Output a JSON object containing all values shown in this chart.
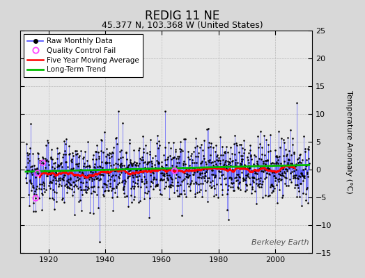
{
  "title": "REDIG 11 NE",
  "subtitle": "45.377 N, 103.368 W (United States)",
  "ylabel": "Temperature Anomaly (°C)",
  "watermark": "Berkeley Earth",
  "year_start": 1912,
  "year_end": 2011,
  "ylim": [
    -15,
    25
  ],
  "yticks": [
    -15,
    -10,
    -5,
    0,
    5,
    10,
    15,
    20,
    25
  ],
  "xticks": [
    1920,
    1940,
    1960,
    1980,
    2000
  ],
  "xlim_left": 1910,
  "xlim_right": 2013,
  "fig_bg_color": "#d8d8d8",
  "plot_bg_color": "#e8e8e8",
  "line_color": "#4444ff",
  "dot_color": "#000000",
  "ma_color": "#ff0000",
  "trend_color": "#00bb00",
  "qc_color": "#ff44ff",
  "grid_color": "#bbbbbb",
  "title_fontsize": 12,
  "subtitle_fontsize": 9,
  "tick_fontsize": 8,
  "label_fontsize": 8,
  "legend_fontsize": 7.5
}
